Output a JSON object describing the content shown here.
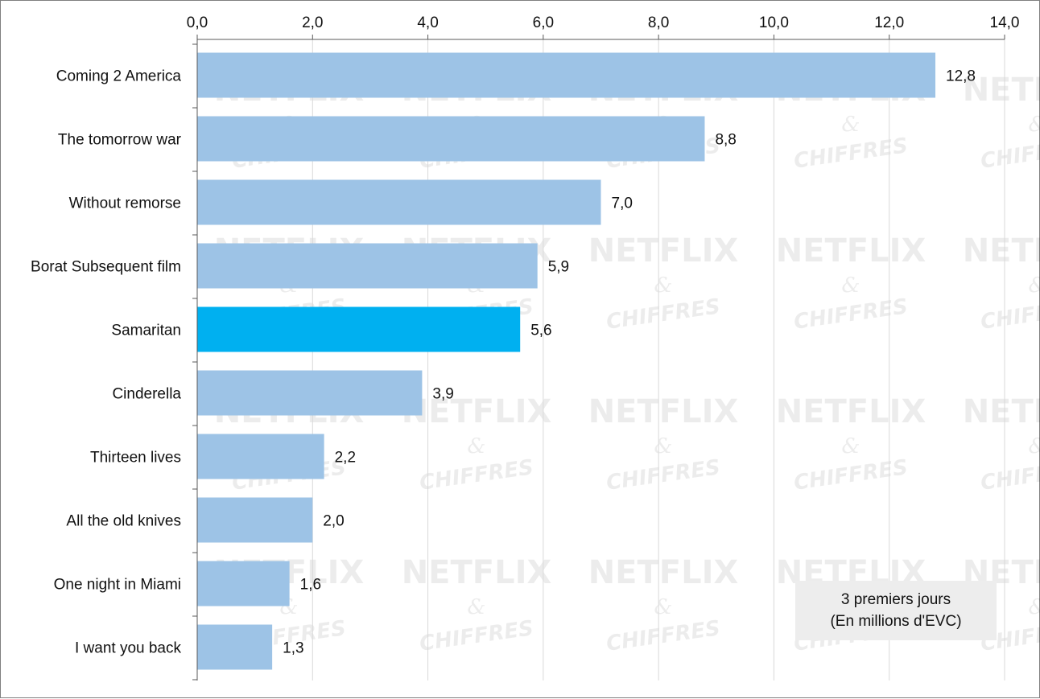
{
  "chart_data": {
    "type": "bar",
    "orientation": "horizontal",
    "categories": [
      "Coming 2 America",
      "The tomorrow war",
      "Without remorse",
      "Borat Subsequent film",
      "Samaritan",
      "Cinderella",
      "Thirteen lives",
      "All the old knives",
      "One night in Miami",
      "I want you back"
    ],
    "values": [
      12.8,
      8.8,
      7.0,
      5.9,
      5.6,
      3.9,
      2.2,
      2.0,
      1.6,
      1.3
    ],
    "value_labels": [
      "12,8",
      "8,8",
      "7,0",
      "5,9",
      "5,6",
      "3,9",
      "2,2",
      "2,0",
      "1,6",
      "1,3"
    ],
    "highlighted_index": 4,
    "xlim": [
      0,
      14
    ],
    "x_ticks": [
      0,
      2,
      4,
      6,
      8,
      10,
      12,
      14
    ],
    "x_tick_labels": [
      "0,0",
      "2,0",
      "4,0",
      "6,0",
      "8,0",
      "10,0",
      "12,0",
      "14,0"
    ],
    "x_axis_position": "top",
    "grid": "vertical",
    "colors": {
      "bar": "#9dc3e6",
      "highlight": "#00b0f0",
      "grid": "#d9d9d9",
      "axis": "#595959",
      "note_box": "#ededed"
    },
    "annotation": {
      "lines": [
        "3 premiers jours",
        "(En millions d'EVC)"
      ],
      "placement": "bottom-right"
    },
    "watermark": {
      "line1": "NETFLIX",
      "line2": "&",
      "line3": "CHIFFRES"
    }
  }
}
